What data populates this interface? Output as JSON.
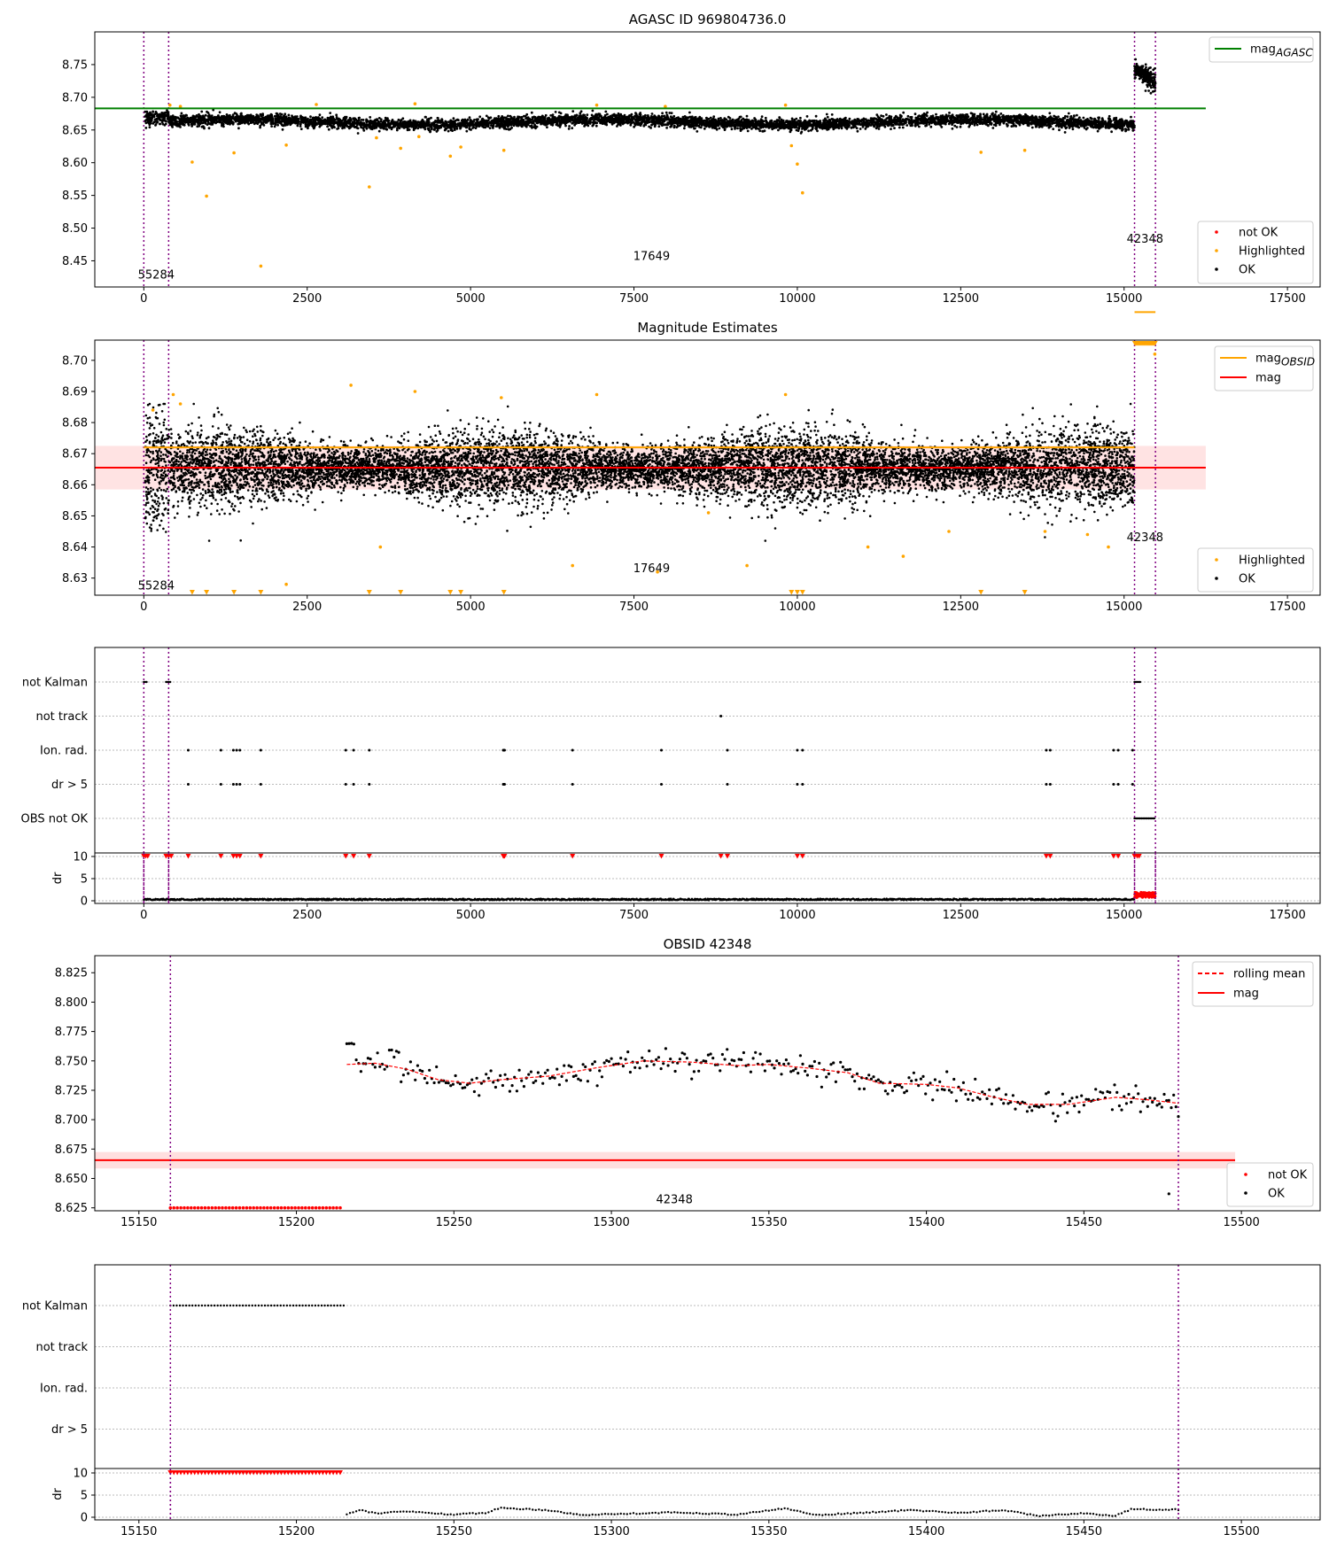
{
  "colors": {
    "ok": "#000000",
    "not_ok": "#ff0000",
    "highlighted": "#ffa500",
    "mag_agasc": "#008000",
    "mag_obsid": "#ffa500",
    "mag": "#ff0000",
    "obs_boundary": "#800080",
    "band": "#ffc0c0",
    "band_orange": "#ffd6b0",
    "grid": "#bbbbbb"
  },
  "chart_data": [
    {
      "id": "agasc",
      "type": "scatter",
      "title": "AGASC ID 969804736.0",
      "xlim": [
        -750,
        18000
      ],
      "ylim": [
        8.41,
        8.8
      ],
      "xticks": [
        0,
        2500,
        5000,
        7500,
        10000,
        12500,
        15000,
        17500
      ],
      "yticks": [
        8.45,
        8.5,
        8.55,
        8.6,
        8.65,
        8.7,
        8.75
      ],
      "xtick_labels": [
        "0",
        "2500",
        "5000",
        "7500",
        "10000",
        "12500",
        "15000",
        "17500"
      ],
      "ytick_labels": [
        "8.45",
        "8.50",
        "8.55",
        "8.60",
        "8.65",
        "8.70",
        "8.75"
      ],
      "obs_boundaries": [
        0,
        380,
        15160,
        15480
      ],
      "obs_labels": [
        {
          "text": "55284",
          "x": 190,
          "y": 8.428
        },
        {
          "text": "17649",
          "x": 7770,
          "y": 8.457
        },
        {
          "text": "42348",
          "x": 15320,
          "y": 8.483
        }
      ],
      "reference_lines": [
        {
          "name": "mag_AGASC",
          "y": 8.683,
          "x_end": 16250
        }
      ],
      "ok_main": {
        "x": [
          20,
          15160
        ],
        "center": 8.662,
        "spread": 0.01
      },
      "ok_segment_last": {
        "x": [
          15160,
          15480
        ],
        "center": 8.733,
        "spread": 0.015
      },
      "highlighted": [
        {
          "x": 740,
          "y": 8.601
        },
        {
          "x": 960,
          "y": 8.549
        },
        {
          "x": 1380,
          "y": 8.615
        },
        {
          "x": 1790,
          "y": 8.442
        },
        {
          "x": 2180,
          "y": 8.627
        },
        {
          "x": 3450,
          "y": 8.563
        },
        {
          "x": 3560,
          "y": 8.638
        },
        {
          "x": 3930,
          "y": 8.622
        },
        {
          "x": 4210,
          "y": 8.64
        },
        {
          "x": 4690,
          "y": 8.61
        },
        {
          "x": 4850,
          "y": 8.624
        },
        {
          "x": 5510,
          "y": 8.619
        },
        {
          "x": 9910,
          "y": 8.626
        },
        {
          "x": 10000,
          "y": 8.598
        },
        {
          "x": 10080,
          "y": 8.554
        },
        {
          "x": 12810,
          "y": 8.616
        },
        {
          "x": 13480,
          "y": 8.619
        },
        {
          "x": 400,
          "y": 8.688
        },
        {
          "x": 560,
          "y": 8.686
        },
        {
          "x": 2640,
          "y": 8.689
        },
        {
          "x": 4150,
          "y": 8.69
        },
        {
          "x": 6930,
          "y": 8.688
        },
        {
          "x": 7980,
          "y": 8.686
        },
        {
          "x": 9820,
          "y": 8.688
        }
      ],
      "legend": {
        "lines": [
          {
            "label_main": "mag",
            "label_sub": "AGASC",
            "color_key": "mag_agasc"
          }
        ],
        "points": [
          {
            "label": "not OK",
            "color_key": "not_ok"
          },
          {
            "label": "Highlighted",
            "color_key": "highlighted"
          },
          {
            "label": "OK",
            "color_key": "ok"
          }
        ],
        "placement_lines": "top-right",
        "placement_points": "bottom-right"
      }
    },
    {
      "id": "estimates",
      "type": "scatter",
      "title": "Magnitude Estimates",
      "xlim": [
        -750,
        18000
      ],
      "ylim": [
        8.6245,
        8.7065
      ],
      "xticks": [
        0,
        2500,
        5000,
        7500,
        10000,
        12500,
        15000,
        17500
      ],
      "yticks": [
        8.63,
        8.64,
        8.65,
        8.66,
        8.67,
        8.68,
        8.69,
        8.7
      ],
      "xtick_labels": [
        "0",
        "2500",
        "5000",
        "7500",
        "10000",
        "12500",
        "15000",
        "17500"
      ],
      "ytick_labels": [
        "8.63",
        "8.64",
        "8.65",
        "8.66",
        "8.67",
        "8.68",
        "8.69",
        "8.70"
      ],
      "obs_boundaries": [
        0,
        380,
        15160,
        15480
      ],
      "obs_labels": [
        {
          "text": "55284",
          "x": 190,
          "y": 8.6275
        },
        {
          "text": "17649",
          "x": 7770,
          "y": 8.633
        },
        {
          "text": "42348",
          "x": 15320,
          "y": 8.643
        }
      ],
      "mag": 8.6655,
      "mag_band": [
        8.6585,
        8.6725
      ],
      "mag_obsid_segments": [
        {
          "x": [
            0,
            380
          ],
          "y": 8.672
        },
        {
          "x": [
            380,
            15160
          ],
          "y": 8.672
        },
        {
          "x": [
            15160,
            15480
          ],
          "y": 8.7155
        }
      ],
      "ok_main": {
        "x": [
          20,
          15160
        ],
        "center": 8.6655,
        "spread": 0.0065
      },
      "highlighted_bottom_x": [
        740,
        960,
        1380,
        1790,
        3450,
        3930,
        4690,
        4850,
        5510,
        9910,
        10000,
        10080,
        12810,
        13480
      ],
      "highlighted": [
        {
          "x": 140,
          "y": 8.684
        },
        {
          "x": 450,
          "y": 8.689
        },
        {
          "x": 560,
          "y": 8.686
        },
        {
          "x": 2180,
          "y": 8.628
        },
        {
          "x": 3170,
          "y": 8.692
        },
        {
          "x": 3620,
          "y": 8.64
        },
        {
          "x": 4150,
          "y": 8.69
        },
        {
          "x": 5470,
          "y": 8.688
        },
        {
          "x": 6560,
          "y": 8.634
        },
        {
          "x": 6930,
          "y": 8.689
        },
        {
          "x": 7860,
          "y": 8.632
        },
        {
          "x": 8640,
          "y": 8.651
        },
        {
          "x": 9230,
          "y": 8.634
        },
        {
          "x": 9820,
          "y": 8.689
        },
        {
          "x": 11080,
          "y": 8.64
        },
        {
          "x": 11620,
          "y": 8.637
        },
        {
          "x": 12320,
          "y": 8.645
        },
        {
          "x": 13790,
          "y": 8.645
        },
        {
          "x": 14440,
          "y": 8.644
        },
        {
          "x": 14760,
          "y": 8.64
        },
        {
          "x": 15470,
          "y": 8.702
        }
      ],
      "legend": {
        "lines": [
          {
            "label_main": "mag",
            "label_sub": "OBSID",
            "color_key": "mag_obsid"
          },
          {
            "label_main": "mag",
            "label_sub": "",
            "color_key": "mag"
          }
        ],
        "points": [
          {
            "label": "Highlighted",
            "color_key": "highlighted"
          },
          {
            "label": "OK",
            "color_key": "ok"
          }
        ],
        "placement_lines": "top-right",
        "placement_points": "bottom-right"
      }
    },
    {
      "id": "flags-full",
      "type": "scatter",
      "title": "",
      "xlim": [
        -750,
        18000
      ],
      "xticks": [
        0,
        2500,
        5000,
        7500,
        10000,
        12500,
        15000,
        17500
      ],
      "xtick_labels": [
        "0",
        "2500",
        "5000",
        "7500",
        "10000",
        "12500",
        "15000",
        "17500"
      ],
      "obs_boundaries": [
        0,
        380,
        15160,
        15480
      ],
      "categories": [
        "not Kalman",
        "not track",
        "Ion. rad.",
        "dr > 5",
        "OBS not OK"
      ],
      "flag_spans": {
        "not Kalman": [
          [
            0,
            60
          ],
          [
            340,
            420
          ],
          [
            15160,
            15250
          ]
        ],
        "not track": [],
        "Ion. rad.": [],
        "dr > 5": [],
        "OBS not OK": [
          [
            15160,
            15480
          ]
        ]
      },
      "flag_points": {
        "not Kalman": [],
        "not track": [
          8830
        ],
        "Ion. rad.": [
          680,
          1180,
          1370,
          1420,
          1470,
          1790,
          3090,
          3210,
          3450,
          5500,
          5510,
          5520,
          6560,
          7920,
          8930,
          10000,
          10080,
          13810,
          13870,
          14840,
          14910,
          15130
        ],
        "dr > 5": [
          680,
          1180,
          1370,
          1420,
          1470,
          1790,
          3090,
          3210,
          3450,
          5500,
          5510,
          5520,
          6560,
          7920,
          8930,
          10000,
          10080,
          13810,
          13870,
          14840,
          14910,
          15130
        ],
        "OBS not OK": []
      },
      "dr_axis": {
        "label": "dr",
        "ylim": [
          -0.6,
          10.8
        ],
        "yticks": [
          0,
          5,
          10
        ],
        "ytick_labels": [
          "0",
          "5",
          "10"
        ],
        "capped_marks_x": [
          0,
          30,
          60,
          340,
          380,
          420,
          680,
          1180,
          1370,
          1420,
          1470,
          1790,
          3090,
          3210,
          3450,
          5500,
          5510,
          5520,
          6560,
          7920,
          8830,
          8930,
          10000,
          10080,
          13810,
          13870,
          14840,
          14910,
          15160,
          15200,
          15230
        ],
        "ok_range": [
          0,
          15160
        ],
        "ok_level": 0.3,
        "notok_range": [
          15160,
          15480
        ],
        "notok_level": 1.3
      }
    },
    {
      "id": "obsid",
      "type": "scatter",
      "title": "OBSID 42348",
      "xlim": [
        15136,
        15525
      ],
      "ylim": [
        8.6225,
        8.8395
      ],
      "xticks": [
        15150,
        15200,
        15250,
        15300,
        15350,
        15400,
        15450,
        15500
      ],
      "yticks": [
        8.625,
        8.65,
        8.675,
        8.7,
        8.725,
        8.75,
        8.775,
        8.8,
        8.825
      ],
      "xtick_labels": [
        "15150",
        "15200",
        "15250",
        "15300",
        "15350",
        "15400",
        "15450",
        "15500"
      ],
      "ytick_labels": [
        "8.625",
        "8.650",
        "8.675",
        "8.700",
        "8.725",
        "8.750",
        "8.775",
        "8.800",
        "8.825"
      ],
      "obs_boundaries": [
        15160,
        15480
      ],
      "obs_labels": [
        {
          "text": "42348",
          "x": 15320,
          "y": 8.632
        }
      ],
      "mag": 8.6655,
      "mag_band": [
        8.6585,
        8.6725
      ],
      "mag_line_x": [
        15136,
        15498
      ],
      "notok_points": {
        "x_range": [
          15160,
          15215
        ],
        "y": 8.625
      },
      "rolling_mean": [
        {
          "x": 15216,
          "y": 8.747
        },
        {
          "x": 15225,
          "y": 8.748
        },
        {
          "x": 15235,
          "y": 8.743
        },
        {
          "x": 15245,
          "y": 8.734
        },
        {
          "x": 15255,
          "y": 8.731
        },
        {
          "x": 15265,
          "y": 8.734
        },
        {
          "x": 15280,
          "y": 8.737
        },
        {
          "x": 15295,
          "y": 8.744
        },
        {
          "x": 15310,
          "y": 8.75
        },
        {
          "x": 15325,
          "y": 8.749
        },
        {
          "x": 15340,
          "y": 8.746
        },
        {
          "x": 15350,
          "y": 8.747
        },
        {
          "x": 15362,
          "y": 8.744
        },
        {
          "x": 15375,
          "y": 8.74
        },
        {
          "x": 15385,
          "y": 8.731
        },
        {
          "x": 15400,
          "y": 8.73
        },
        {
          "x": 15410,
          "y": 8.727
        },
        {
          "x": 15420,
          "y": 8.72
        },
        {
          "x": 15432,
          "y": 8.713
        },
        {
          "x": 15445,
          "y": 8.713
        },
        {
          "x": 15460,
          "y": 8.719
        },
        {
          "x": 15470,
          "y": 8.717
        },
        {
          "x": 15480,
          "y": 8.714
        }
      ],
      "ok_outlier": {
        "x": 15477,
        "y": 8.637
      },
      "legend": {
        "lines": [
          {
            "label": "rolling mean",
            "color_key": "mag",
            "dashed": true
          },
          {
            "label": "mag",
            "color_key": "mag",
            "dashed": false
          }
        ],
        "points": [
          {
            "label": "not OK",
            "color_key": "not_ok"
          },
          {
            "label": "OK",
            "color_key": "ok"
          }
        ],
        "placement_lines": "top-right",
        "placement_points": "bottom-right"
      }
    },
    {
      "id": "flags-obsid",
      "type": "scatter",
      "title": "",
      "xlim": [
        15136,
        15525
      ],
      "xticks": [
        15150,
        15200,
        15250,
        15300,
        15350,
        15400,
        15450,
        15500
      ],
      "xtick_labels": [
        "15150",
        "15200",
        "15250",
        "15300",
        "15350",
        "15400",
        "15450",
        "15500"
      ],
      "obs_boundaries": [
        15160,
        15480
      ],
      "categories": [
        "not Kalman",
        "not track",
        "Ion. rad.",
        "dr > 5"
      ],
      "flag_spans": {
        "not Kalman": [
          [
            15160,
            15215
          ]
        ],
        "not track": [],
        "Ion. rad.": [],
        "dr > 5": []
      },
      "flag_points": {
        "not Kalman": [],
        "not track": [],
        "Ion. rad.": [],
        "dr > 5": []
      },
      "dr_axis": {
        "label": "dr",
        "ylim": [
          -0.6,
          11.0
        ],
        "yticks": [
          0,
          5,
          10
        ],
        "ytick_labels": [
          "0",
          "5",
          "10"
        ],
        "capped_range": [
          15160,
          15215
        ],
        "dr_curve": [
          {
            "x": 15216,
            "y": 0.7
          },
          {
            "x": 15220,
            "y": 1.7
          },
          {
            "x": 15225,
            "y": 0.9
          },
          {
            "x": 15235,
            "y": 1.3
          },
          {
            "x": 15250,
            "y": 0.6
          },
          {
            "x": 15260,
            "y": 1.0
          },
          {
            "x": 15265,
            "y": 2.1
          },
          {
            "x": 15280,
            "y": 1.6
          },
          {
            "x": 15290,
            "y": 0.5
          },
          {
            "x": 15305,
            "y": 0.8
          },
          {
            "x": 15320,
            "y": 1.1
          },
          {
            "x": 15340,
            "y": 0.6
          },
          {
            "x": 15355,
            "y": 2.0
          },
          {
            "x": 15365,
            "y": 0.5
          },
          {
            "x": 15380,
            "y": 1.0
          },
          {
            "x": 15395,
            "y": 1.6
          },
          {
            "x": 15410,
            "y": 1.0
          },
          {
            "x": 15425,
            "y": 1.6
          },
          {
            "x": 15435,
            "y": 0.3
          },
          {
            "x": 15450,
            "y": 0.9
          },
          {
            "x": 15460,
            "y": 0.3
          },
          {
            "x": 15465,
            "y": 1.8
          },
          {
            "x": 15480,
            "y": 1.7
          }
        ]
      }
    }
  ]
}
